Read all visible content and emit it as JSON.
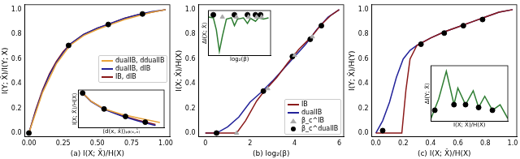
{
  "chart_data": [
    {
      "type": "line",
      "panel": "(a)",
      "xlabel": "I(X; X̂)/H(X)",
      "ylabel": "I(Y; X̂)/I(Y; X)",
      "xlim": [
        -0.03,
        1.03
      ],
      "ylim": [
        -0.03,
        1.04
      ],
      "xticks": [
        {
          "value": 0,
          "label": "0.00"
        },
        {
          "value": 0.25,
          "label": "0.25"
        },
        {
          "value": 0.5,
          "label": "0.50"
        },
        {
          "value": 0.75,
          "label": "0.75"
        },
        {
          "value": 1,
          "label": "1.00"
        }
      ],
      "yticks": [
        {
          "value": 0,
          "label": "0.0"
        },
        {
          "value": 0.2,
          "label": "0.2"
        },
        {
          "value": 0.4,
          "label": "0.4"
        },
        {
          "value": 0.6,
          "label": "0.6"
        },
        {
          "value": 0.8,
          "label": "0.8"
        },
        {
          "value": 1,
          "label": "1.0"
        }
      ],
      "grid": false,
      "legend": "right",
      "series": [
        {
          "name": "dualIB, ddualIB",
          "color": "#e8a33a",
          "marker": "none",
          "line_style": "solid",
          "x": [
            0,
            0.1,
            0.2,
            0.3,
            0.4,
            0.5,
            0.6,
            0.7,
            0.8,
            0.9,
            1.0
          ],
          "values": [
            0,
            0.33,
            0.56,
            0.71,
            0.79,
            0.84,
            0.88,
            0.92,
            0.95,
            0.98,
            1.0
          ]
        },
        {
          "name": "dualIB, dIB",
          "color": "#23239a",
          "marker": "none",
          "line_style": "solid",
          "x": [
            0,
            0.05,
            0.1,
            0.15,
            0.2,
            0.25,
            0.3,
            0.4,
            0.5,
            0.6,
            0.7,
            0.8,
            0.9,
            1.0
          ],
          "values": [
            0,
            0.18,
            0.34,
            0.47,
            0.57,
            0.65,
            0.72,
            0.8,
            0.85,
            0.89,
            0.93,
            0.96,
            0.985,
            1.0
          ]
        },
        {
          "name": "IB, dIB",
          "color": "#8b1a1a",
          "marker": "none",
          "line_style": "solid",
          "x": [
            0,
            0.05,
            0.1,
            0.15,
            0.2,
            0.25,
            0.3,
            0.4,
            0.5,
            0.6,
            0.7,
            0.8,
            0.9,
            1.0
          ],
          "values": [
            0,
            0.19,
            0.35,
            0.48,
            0.58,
            0.66,
            0.72,
            0.8,
            0.85,
            0.89,
            0.93,
            0.96,
            0.98,
            1.0
          ]
        },
        {
          "color": "#000000",
          "marker": "circle",
          "line_style": "none",
          "x": [
            0,
            0.29,
            0.58,
            0.83
          ],
          "values": [
            0,
            0.71,
            0.88,
            0.965
          ]
        }
      ],
      "inset": {
        "type": "line",
        "xlabel": "⟨d(x, x̂)⟩ₚᵦ₍ₓ,ₓ̂₎",
        "ylabel": "I(X; X̂)/H(X)",
        "xlim": [
          0,
          1
        ],
        "ylim": [
          0,
          1
        ],
        "tick_labels": false,
        "grid": false,
        "series": [
          {
            "color": "#e8a33a",
            "marker": "none",
            "line_style": "solid",
            "x": [
              0.05,
              0.15,
              0.3,
              0.5,
              0.7,
              0.95
            ],
            "values": [
              0.92,
              0.7,
              0.5,
              0.36,
              0.26,
              0.14
            ]
          },
          {
            "color": "#23239a",
            "marker": "none",
            "line_style": "solid",
            "x": [
              0.05,
              0.15,
              0.3,
              0.5,
              0.7,
              0.9
            ],
            "values": [
              0.92,
              0.69,
              0.49,
              0.32,
              0.18,
              0.06
            ]
          },
          {
            "color": "#8b1a1a",
            "marker": "none",
            "line_style": "solid",
            "x": [
              0.05,
              0.15,
              0.3,
              0.5,
              0.7,
              0.9
            ],
            "values": [
              0.92,
              0.7,
              0.5,
              0.33,
              0.2,
              0.09
            ]
          },
          {
            "color": "#000000",
            "marker": "circle",
            "line_style": "none",
            "x": [
              0.05,
              0.3,
              0.55,
              0.78
            ],
            "values": [
              0.92,
              0.5,
              0.3,
              0.15
            ]
          }
        ]
      }
    },
    {
      "type": "line",
      "panel": "(b)",
      "xlabel": "log₂(β)",
      "ylabel": "I(X; X̂)/H(X)",
      "xlim": [
        -0.3,
        6.2
      ],
      "ylim": [
        -0.03,
        1.04
      ],
      "xticks": [
        0,
        2,
        4,
        6
      ],
      "yticks": [
        {
          "value": 0,
          "label": "0.0"
        },
        {
          "value": 0.2,
          "label": "0.2"
        },
        {
          "value": 0.4,
          "label": "0.4"
        },
        {
          "value": 0.6,
          "label": "0.6"
        },
        {
          "value": 0.8,
          "label": "0.8"
        },
        {
          "value": 1,
          "label": "1.0"
        }
      ],
      "grid": false,
      "legend": "lower right",
      "series": [
        {
          "name": "IB",
          "color": "#8b1a1a",
          "marker": "none",
          "line_style": "solid",
          "x": [
            0,
            1.4,
            1.8,
            2.3,
            2.6,
            3.2,
            3.7,
            4.2,
            4.7,
            5.2,
            5.6,
            6.0
          ],
          "values": [
            0,
            0,
            0.1,
            0.26,
            0.33,
            0.45,
            0.57,
            0.68,
            0.77,
            0.88,
            0.95,
            1.0
          ]
        },
        {
          "name": "dualIB",
          "color": "#23239a",
          "marker": "none",
          "line_style": "solid",
          "x": [
            0,
            0.5,
            1.0,
            1.5,
            2.0,
            2.5,
            3.0,
            3.5,
            4.0,
            4.5,
            5.0,
            5.5,
            6.0
          ],
          "values": [
            0,
            0,
            0.05,
            0.13,
            0.25,
            0.33,
            0.42,
            0.52,
            0.62,
            0.72,
            0.84,
            0.94,
            1.0
          ]
        },
        {
          "name": "β_c^IB",
          "color": "#aaaaaa",
          "marker": "triangle",
          "line_style": "none",
          "x": [
            1.4,
            2.8,
            4.0,
            4.8
          ],
          "values": [
            0,
            0.36,
            0.63,
            0.78
          ]
        },
        {
          "name": "β_c^dualIB",
          "color": "#000000",
          "marker": "circle",
          "line_style": "none",
          "x": [
            0.5,
            2.6,
            3.9,
            4.7,
            5.2
          ],
          "values": [
            0,
            0.34,
            0.62,
            0.76,
            0.87
          ]
        }
      ],
      "inset": {
        "type": "line",
        "xlabel": "log₂(β)",
        "ylabel": "ΔI(X; X̂)",
        "xlim": [
          0,
          6.2
        ],
        "ylim": [
          0,
          1.05
        ],
        "tick_labels": false,
        "grid": false,
        "series": [
          {
            "color": "#2e7d32",
            "marker": "none",
            "line_style": "solid",
            "x": [
              0,
              0.5,
              0.8,
              1.1,
              1.4,
              1.8,
              2.3,
              2.6,
              2.9,
              3.5,
              3.9,
              4.2,
              4.7,
              5.0,
              5.5,
              6.0
            ],
            "values": [
              0.9,
              0.88,
              0.6,
              0.1,
              0.45,
              0.85,
              0.88,
              0.7,
              0.85,
              0.88,
              0.75,
              0.87,
              0.8,
              0.88,
              0.85,
              0.88
            ]
          },
          {
            "color": "#aaaaaa",
            "marker": "triangle",
            "line_style": "none",
            "x": [
              1.4,
              2.8,
              4.0,
              4.8,
              5.3
            ],
            "values": [
              0.9,
              0.9,
              0.9,
              0.9,
              0.9
            ]
          },
          {
            "color": "#000000",
            "marker": "circle",
            "line_style": "none",
            "x": [
              0.5,
              2.6,
              3.9,
              4.7,
              5.2
            ],
            "values": [
              0.95,
              0.95,
              0.95,
              0.95,
              0.95
            ]
          }
        ]
      }
    },
    {
      "type": "line",
      "panel": "(c)",
      "xlabel": "I(X; X̂)/H(X)",
      "ylabel": "I(Y; X̂)/H(Y)",
      "xlim": [
        -0.03,
        1.03
      ],
      "ylim": [
        -0.03,
        1.04
      ],
      "xticks": [
        {
          "value": 0,
          "label": "0.0"
        },
        {
          "value": 0.2,
          "label": "0.2"
        },
        {
          "value": 0.4,
          "label": "0.4"
        },
        {
          "value": 0.6,
          "label": "0.6"
        },
        {
          "value": 0.8,
          "label": "0.8"
        },
        {
          "value": 1,
          "label": "1.0"
        }
      ],
      "yticks": [
        {
          "value": 0,
          "label": "0.0"
        },
        {
          "value": 0.2,
          "label": "0.2"
        },
        {
          "value": 0.4,
          "label": "0.4"
        },
        {
          "value": 0.6,
          "label": "0.6"
        },
        {
          "value": 0.8,
          "label": "0.8"
        },
        {
          "value": 1,
          "label": "1.0"
        }
      ],
      "grid": false,
      "series": [
        {
          "color": "#8b1a1a",
          "marker": "none",
          "line_style": "solid",
          "x": [
            0,
            0.19,
            0.22,
            0.25,
            0.3,
            0.4,
            0.5,
            0.6,
            0.7,
            0.8,
            0.9,
            1.0
          ],
          "values": [
            0,
            0,
            0.35,
            0.6,
            0.71,
            0.77,
            0.82,
            0.86,
            0.9,
            0.94,
            0.98,
            1.0
          ]
        },
        {
          "color": "#23239a",
          "marker": "none",
          "line_style": "solid",
          "x": [
            0,
            0.05,
            0.1,
            0.15,
            0.2,
            0.25,
            0.3,
            0.35,
            0.4,
            0.5,
            0.6,
            0.7,
            0.8,
            0.9,
            1.0
          ],
          "values": [
            0,
            0.1,
            0.25,
            0.45,
            0.6,
            0.67,
            0.71,
            0.74,
            0.77,
            0.82,
            0.86,
            0.9,
            0.94,
            0.98,
            1.0
          ]
        },
        {
          "color": "#000000",
          "marker": "circle",
          "line_style": "none",
          "x": [
            0.05,
            0.33,
            0.5,
            0.64,
            0.78
          ],
          "values": [
            0.02,
            0.72,
            0.81,
            0.87,
            0.92
          ]
        }
      ],
      "inset": {
        "type": "line",
        "xlabel": "I(X; X̂)/H(X)",
        "ylabel": "ΔI(Y; X̂)",
        "xlim": [
          0,
          1
        ],
        "ylim": [
          0,
          1
        ],
        "tick_labels": false,
        "grid": false,
        "series": [
          {
            "color": "#2e7d32",
            "marker": "none",
            "line_style": "solid",
            "x": [
              0,
              0.1,
              0.2,
              0.3,
              0.35,
              0.45,
              0.55,
              0.62,
              0.7,
              0.8,
              0.9,
              1.0
            ],
            "values": [
              0.05,
              0.4,
              0.9,
              0.3,
              0.6,
              0.3,
              0.55,
              0.25,
              0.45,
              0.2,
              0.3,
              0.05
            ]
          },
          {
            "color": "#000000",
            "marker": "circle",
            "line_style": "none",
            "x": [
              0.05,
              0.3,
              0.45,
              0.62,
              0.8
            ],
            "values": [
              0.2,
              0.3,
              0.3,
              0.25,
              0.2
            ]
          }
        ]
      }
    }
  ]
}
